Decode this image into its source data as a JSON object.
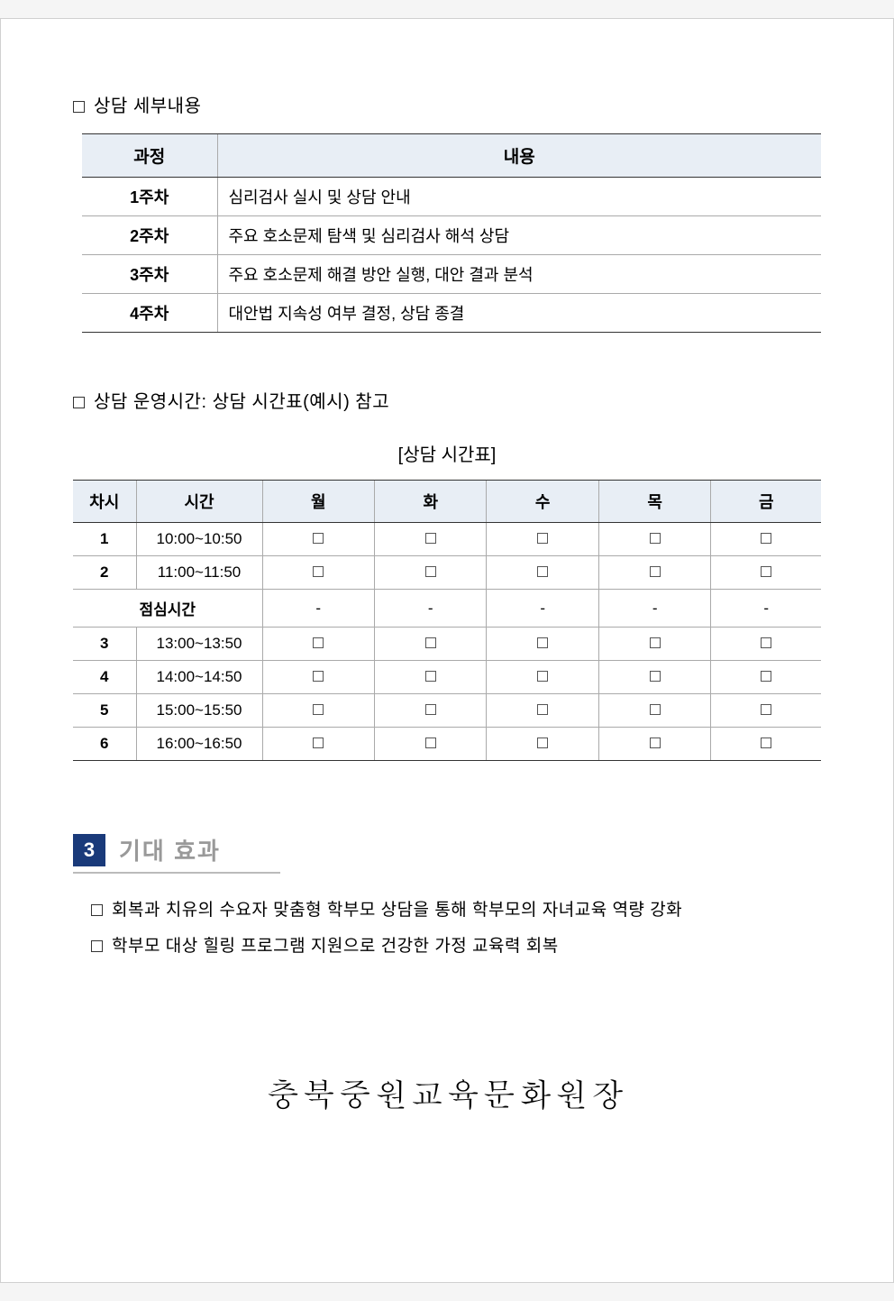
{
  "section1": {
    "heading": "상담 세부내용",
    "table": {
      "headers": [
        "과정",
        "내용"
      ],
      "rows": [
        {
          "week": "1주차",
          "content": "심리검사 실시 및 상담 안내"
        },
        {
          "week": "2주차",
          "content": "주요 호소문제 탐색 및 심리검사 해석 상담"
        },
        {
          "week": "3주차",
          "content": "주요 호소문제 해결 방안 실행, 대안 결과 분석"
        },
        {
          "week": "4주차",
          "content": "대안법 지속성 여부 결정, 상담 종결"
        }
      ]
    }
  },
  "section2": {
    "heading": "상담 운영시간: 상담 시간표(예시) 참고",
    "caption": "[상담 시간표]",
    "table": {
      "headers": [
        "차시",
        "시간",
        "월",
        "화",
        "수",
        "목",
        "금"
      ],
      "rows": [
        {
          "num": "1",
          "time": "10:00~10:50",
          "type": "check"
        },
        {
          "num": "2",
          "time": "11:00~11:50",
          "type": "check"
        },
        {
          "num": "",
          "time": "점심시간",
          "type": "lunch"
        },
        {
          "num": "3",
          "time": "13:00~13:50",
          "type": "check"
        },
        {
          "num": "4",
          "time": "14:00~14:50",
          "type": "check"
        },
        {
          "num": "5",
          "time": "15:00~15:50",
          "type": "check"
        },
        {
          "num": "6",
          "time": "16:00~16:50",
          "type": "check"
        }
      ]
    }
  },
  "section3": {
    "num": "3",
    "title": "기대 효과",
    "bullets": [
      "회복과 치유의 수요자 맞춤형 학부모 상담을 통해 학부모의 자녀교육 역량 강화",
      "학부모 대상 힐링 프로그램 지원으로 건강한 가정 교육력 회복"
    ]
  },
  "signature": "충북중원교육문화원장"
}
